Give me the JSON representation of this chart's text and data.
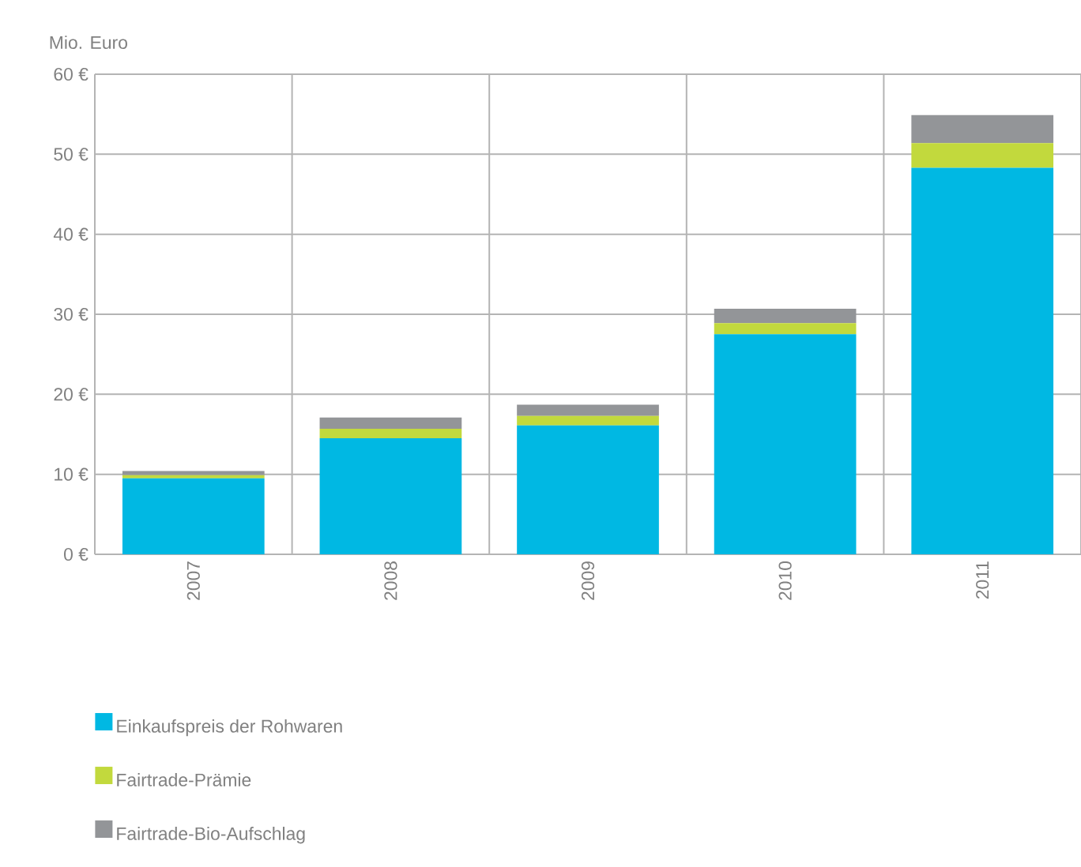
{
  "chart_data": {
    "type": "bar",
    "stacked": true,
    "ylabel": "Mio. Euro",
    "categories": [
      "2007",
      "2008",
      "2009",
      "2010",
      "2011"
    ],
    "series": [
      {
        "name": "Einkaufspreis der Rohwaren",
        "color": "#00b8e3",
        "values": [
          9.5,
          14.5,
          16.1,
          27.5,
          48.3
        ]
      },
      {
        "name": "Fairtrade-Prämie",
        "color": "#c2d93d",
        "values": [
          0.4,
          1.2,
          1.2,
          1.4,
          3.1
        ]
      },
      {
        "name": "Fairtrade-Bio-Aufschlag",
        "color": "#939598",
        "values": [
          0.5,
          1.4,
          1.4,
          1.8,
          3.5
        ]
      }
    ],
    "ylim": [
      0,
      60
    ],
    "yticks": [
      {
        "value": 0,
        "label": "0 €"
      },
      {
        "value": 10,
        "label": "10 €"
      },
      {
        "value": 20,
        "label": "20 €"
      },
      {
        "value": 30,
        "label": "30 €"
      },
      {
        "value": 40,
        "label": "40 €"
      },
      {
        "value": 50,
        "label": "50 €"
      },
      {
        "value": 60,
        "label": "60 €"
      }
    ],
    "grid": true,
    "legend": "bottom"
  }
}
